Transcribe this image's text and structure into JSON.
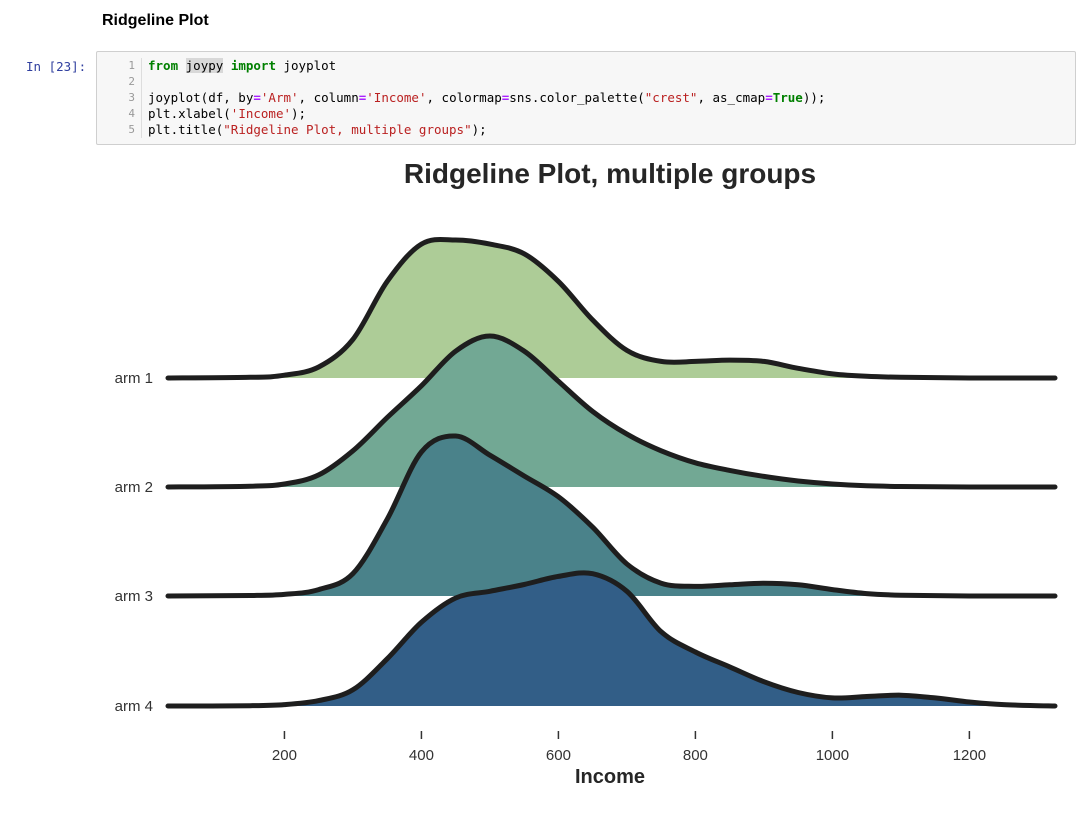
{
  "notebook": {
    "section_title": "Ridgeline Plot",
    "prompt": "In [23]:",
    "code_lines": [
      {
        "no": "1",
        "parts": [
          {
            "t": "from",
            "c": "kw"
          },
          {
            "t": " ",
            "c": ""
          },
          {
            "t": "joypy",
            "c": "hl"
          },
          {
            "t": " ",
            "c": ""
          },
          {
            "t": "import",
            "c": "kw"
          },
          {
            "t": " joyplot",
            "c": ""
          }
        ]
      },
      {
        "no": "2",
        "parts": []
      },
      {
        "no": "3",
        "parts": [
          {
            "t": "joyplot(df, by",
            "c": ""
          },
          {
            "t": "=",
            "c": "op"
          },
          {
            "t": "'Arm'",
            "c": "str"
          },
          {
            "t": ", column",
            "c": ""
          },
          {
            "t": "=",
            "c": "op"
          },
          {
            "t": "'Income'",
            "c": "str"
          },
          {
            "t": ", colormap",
            "c": ""
          },
          {
            "t": "=",
            "c": "op"
          },
          {
            "t": "sns.color_palette(",
            "c": ""
          },
          {
            "t": "\"crest\"",
            "c": "str"
          },
          {
            "t": ", as_cmap",
            "c": ""
          },
          {
            "t": "=",
            "c": "op"
          },
          {
            "t": "True",
            "c": "kw"
          },
          {
            "t": "));",
            "c": ""
          }
        ]
      },
      {
        "no": "4",
        "parts": [
          {
            "t": "plt.xlabel(",
            "c": ""
          },
          {
            "t": "'Income'",
            "c": "str"
          },
          {
            "t": ");",
            "c": ""
          }
        ]
      },
      {
        "no": "5",
        "parts": [
          {
            "t": "plt.title(",
            "c": ""
          },
          {
            "t": "\"Ridgeline Plot, multiple groups\"",
            "c": "str"
          },
          {
            "t": ");",
            "c": ""
          }
        ]
      }
    ]
  },
  "chart_data": {
    "type": "area",
    "subtype": "ridgeline",
    "title": "Ridgeline Plot, multiple groups",
    "xlabel": "Income",
    "xlim": [
      30,
      1325
    ],
    "xticks": [
      200,
      400,
      600,
      800,
      1000,
      1200
    ],
    "grid": false,
    "series": [
      {
        "name": "arm 1",
        "color": "#adcc97",
        "x": [
          30,
          150,
          200,
          250,
          300,
          350,
          400,
          450,
          500,
          550,
          600,
          650,
          700,
          750,
          800,
          850,
          900,
          950,
          1000,
          1050,
          1100,
          1200,
          1325
        ],
        "y": [
          0,
          0.005,
          0.02,
          0.08,
          0.28,
          0.7,
          0.97,
          1.0,
          0.97,
          0.9,
          0.7,
          0.42,
          0.2,
          0.12,
          0.12,
          0.13,
          0.12,
          0.07,
          0.03,
          0.012,
          0.005,
          0,
          0
        ]
      },
      {
        "name": "arm 2",
        "color": "#72a894",
        "x": [
          30,
          150,
          200,
          250,
          300,
          350,
          400,
          450,
          500,
          550,
          600,
          650,
          700,
          750,
          800,
          850,
          900,
          950,
          1000,
          1050,
          1100,
          1200,
          1325
        ],
        "y": [
          0,
          0.005,
          0.02,
          0.08,
          0.24,
          0.46,
          0.67,
          0.9,
          1.0,
          0.9,
          0.7,
          0.5,
          0.35,
          0.24,
          0.16,
          0.11,
          0.07,
          0.04,
          0.02,
          0.008,
          0.003,
          0,
          0
        ]
      },
      {
        "name": "arm 3",
        "color": "#4a828a",
        "x": [
          30,
          150,
          200,
          250,
          300,
          350,
          400,
          450,
          500,
          550,
          600,
          650,
          700,
          750,
          800,
          850,
          900,
          950,
          1000,
          1050,
          1100,
          1200,
          1325
        ],
        "y": [
          0,
          0.003,
          0.01,
          0.04,
          0.14,
          0.48,
          0.9,
          1.0,
          0.88,
          0.75,
          0.62,
          0.43,
          0.2,
          0.08,
          0.06,
          0.07,
          0.08,
          0.07,
          0.04,
          0.015,
          0.005,
          0,
          0
        ]
      },
      {
        "name": "arm 4",
        "color": "#325e87",
        "x": [
          30,
          150,
          200,
          250,
          300,
          350,
          400,
          450,
          500,
          550,
          600,
          650,
          700,
          750,
          800,
          850,
          900,
          950,
          1000,
          1050,
          1100,
          1150,
          1200,
          1250,
          1325
        ],
        "y": [
          0,
          0.002,
          0.01,
          0.04,
          0.12,
          0.35,
          0.62,
          0.8,
          0.85,
          0.9,
          0.96,
          0.98,
          0.85,
          0.55,
          0.4,
          0.29,
          0.18,
          0.1,
          0.06,
          0.07,
          0.08,
          0.06,
          0.03,
          0.01,
          0
        ]
      }
    ]
  }
}
